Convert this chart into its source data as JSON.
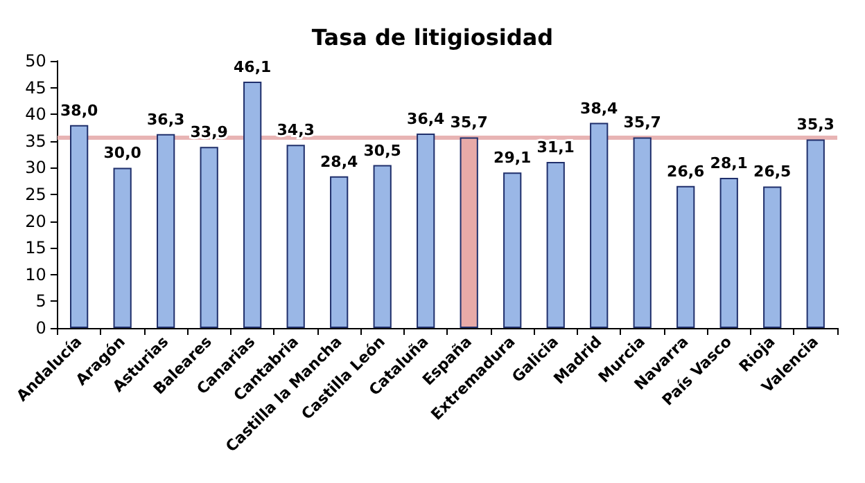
{
  "chart_data": {
    "type": "bar",
    "title": "Tasa de litigiosidad",
    "categories": [
      "Andalucía",
      "Aragón",
      "Asturias",
      "Baleares",
      "Canarias",
      "Cantabria",
      "Castilla la Mancha",
      "Castilla León",
      "Cataluña",
      "España",
      "Extremadura",
      "Galicia",
      "Madrid",
      "Murcia",
      "Navarra",
      "País Vasco",
      "Rioja",
      "Valencia"
    ],
    "values": [
      38.0,
      30.0,
      36.3,
      33.9,
      46.1,
      34.3,
      28.4,
      30.5,
      36.4,
      35.7,
      29.1,
      31.1,
      38.4,
      35.7,
      26.6,
      28.1,
      26.5,
      35.3
    ],
    "value_labels": [
      "38,0",
      "30,0",
      "36,3",
      "33,9",
      "46,1",
      "34,3",
      "28,4",
      "30,5",
      "36,4",
      "35,7",
      "29,1",
      "31,1",
      "38,4",
      "35,7",
      "26,6",
      "28,1",
      "26,5",
      "35,3"
    ],
    "colors": [
      "#9ab7e6",
      "#9ab7e6",
      "#9ab7e6",
      "#9ab7e6",
      "#9ab7e6",
      "#9ab7e6",
      "#9ab7e6",
      "#9ab7e6",
      "#9ab7e6",
      "#e8aaa8",
      "#9ab7e6",
      "#9ab7e6",
      "#9ab7e6",
      "#9ab7e6",
      "#9ab7e6",
      "#9ab7e6",
      "#9ab7e6",
      "#9ab7e6"
    ],
    "ylim": [
      0,
      50
    ],
    "yticks": [
      0,
      5,
      10,
      15,
      20,
      25,
      30,
      35,
      40,
      45,
      50
    ],
    "ref_lines": [
      {
        "axis": "y",
        "value": 35.7,
        "color": "#e8b4b4"
      }
    ],
    "grid": false
  }
}
